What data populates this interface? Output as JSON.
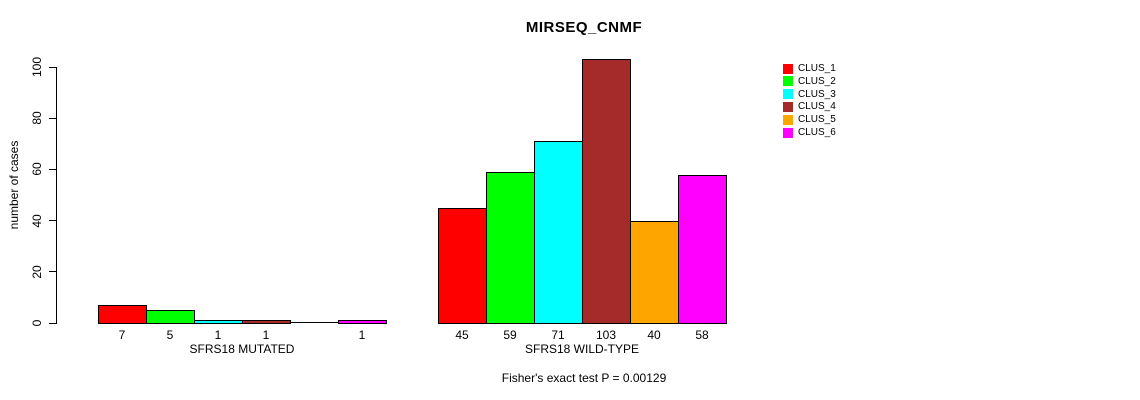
{
  "title": "MIRSEQ_CNMF",
  "y_axis": {
    "label": "number of cases",
    "ticks": [
      0,
      20,
      40,
      60,
      80,
      100
    ]
  },
  "footer": "Fisher's exact test P = 0.00129",
  "legend": {
    "items": [
      {
        "label": "CLUS_1",
        "color": "#FF0000"
      },
      {
        "label": "CLUS_2",
        "color": "#00FF00"
      },
      {
        "label": "CLUS_3",
        "color": "#00FFFF"
      },
      {
        "label": "CLUS_4",
        "color": "#A52A2A"
      },
      {
        "label": "CLUS_5",
        "color": "#FFA500"
      },
      {
        "label": "CLUS_6",
        "color": "#FF00FF"
      }
    ]
  },
  "chart_data": {
    "type": "bar",
    "title": "MIRSEQ_CNMF",
    "ylabel": "number of cases",
    "ylim": [
      0,
      100
    ],
    "yticks": [
      0,
      20,
      40,
      60,
      80,
      100
    ],
    "grid": false,
    "legend_position": "right-outside",
    "series": [
      "CLUS_1",
      "CLUS_2",
      "CLUS_3",
      "CLUS_4",
      "CLUS_5",
      "CLUS_6"
    ],
    "series_colors": [
      "#FF0000",
      "#00FF00",
      "#00FFFF",
      "#A52A2A",
      "#FFA500",
      "#FF00FF"
    ],
    "groups": [
      {
        "label": "SFRS18 MUTATED",
        "values": [
          7,
          5,
          1,
          1,
          0,
          1
        ],
        "bar_labels": [
          "7",
          "5",
          "1",
          "1",
          "",
          "1"
        ]
      },
      {
        "label": "SFRS18 WILD-TYPE",
        "values": [
          45,
          59,
          71,
          103,
          40,
          58
        ],
        "bar_labels": [
          "45",
          "59",
          "71",
          "103",
          "40",
          "58"
        ]
      }
    ],
    "annotation": "Fisher's exact test P = 0.00129"
  }
}
